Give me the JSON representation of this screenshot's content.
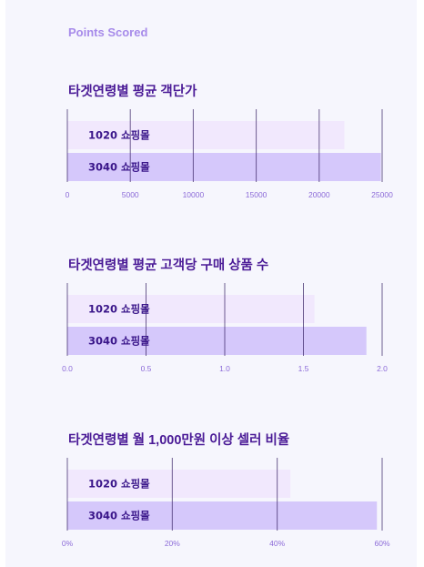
{
  "colors": {
    "eyebrow": "#a78bea",
    "title": "#4a1a96",
    "bar_1020": "#f1e8fd",
    "bar_3040": "#d5c8fb",
    "grid": "#3f2a6b",
    "tick_label": "#8c6bd8"
  },
  "header": {
    "eyebrow": "Points Scored"
  },
  "chart_data": [
    {
      "type": "bar",
      "orientation": "horizontal",
      "title": "타겟연령별 평균 객단가",
      "categories": [
        "1020 쇼핑몰",
        "3040 쇼핑몰"
      ],
      "values": [
        22000,
        24900
      ],
      "xlim": [
        0,
        25000
      ],
      "ticks": [
        "0",
        "5000",
        "10000",
        "15000",
        "20000",
        "25000"
      ],
      "grid": true
    },
    {
      "type": "bar",
      "orientation": "horizontal",
      "title": "타겟연령별 평균 고객당 구매 상품 수",
      "categories": [
        "1020 쇼핑몰",
        "3040 쇼핑몰"
      ],
      "values": [
        1.57,
        1.9
      ],
      "xlim": [
        0,
        2.0
      ],
      "ticks": [
        "0.0",
        "0.5",
        "1.0",
        "1.5",
        "2.0"
      ],
      "grid": true
    },
    {
      "type": "bar",
      "orientation": "horizontal",
      "title": "타겟연령별 월 1,000만원 이상 셀러 비율",
      "categories": [
        "1020 쇼핑몰",
        "3040 쇼핑몰"
      ],
      "values": [
        0.425,
        0.59
      ],
      "xlim": [
        0,
        0.6
      ],
      "ticks": [
        "0%",
        "20%",
        "40%",
        "60%"
      ],
      "grid": true
    }
  ]
}
